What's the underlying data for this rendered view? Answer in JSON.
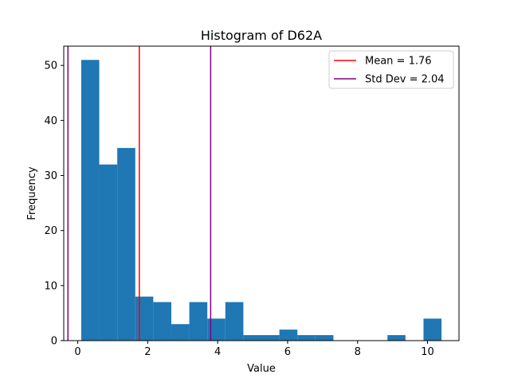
{
  "chart_data": {
    "type": "bar",
    "title": "Histogram of D62A",
    "xlabel": "Value",
    "ylabel": "Frequency",
    "xlim": [
      -0.4,
      10.9
    ],
    "ylim": [
      0,
      53.5
    ],
    "xticks": [
      0,
      2,
      4,
      6,
      8,
      10
    ],
    "yticks": [
      0,
      10,
      20,
      30,
      40,
      50
    ],
    "grid": false,
    "legend_position": "top-right",
    "bar_color": "#1f77b4",
    "bins": [
      {
        "x0": 0.1,
        "x1": 0.615,
        "count": 51
      },
      {
        "x0": 0.615,
        "x1": 1.13,
        "count": 32
      },
      {
        "x0": 1.13,
        "x1": 1.645,
        "count": 35
      },
      {
        "x0": 1.645,
        "x1": 2.16,
        "count": 8
      },
      {
        "x0": 2.16,
        "x1": 2.675,
        "count": 7
      },
      {
        "x0": 2.675,
        "x1": 3.19,
        "count": 3
      },
      {
        "x0": 3.19,
        "x1": 3.705,
        "count": 7
      },
      {
        "x0": 3.705,
        "x1": 4.22,
        "count": 4
      },
      {
        "x0": 4.22,
        "x1": 4.735,
        "count": 7
      },
      {
        "x0": 4.735,
        "x1": 5.25,
        "count": 1
      },
      {
        "x0": 5.25,
        "x1": 5.765,
        "count": 1
      },
      {
        "x0": 5.765,
        "x1": 6.28,
        "count": 2
      },
      {
        "x0": 6.28,
        "x1": 6.795,
        "count": 1
      },
      {
        "x0": 6.795,
        "x1": 7.31,
        "count": 1
      },
      {
        "x0": 7.31,
        "x1": 7.825,
        "count": 0
      },
      {
        "x0": 7.825,
        "x1": 8.34,
        "count": 0
      },
      {
        "x0": 8.34,
        "x1": 8.855,
        "count": 0
      },
      {
        "x0": 8.855,
        "x1": 9.37,
        "count": 1
      },
      {
        "x0": 9.37,
        "x1": 9.885,
        "count": 0
      },
      {
        "x0": 9.885,
        "x1": 10.4,
        "count": 4
      }
    ],
    "vlines": [
      {
        "x": 1.76,
        "color": "#ff0000",
        "label": "Mean = 1.76"
      },
      {
        "x": -0.28,
        "color": "#800080",
        "label": "Std Dev = 2.04"
      },
      {
        "x": 3.8,
        "color": "#800080",
        "label": ""
      }
    ],
    "legend": [
      {
        "label": "Mean = 1.76",
        "color": "#ff0000"
      },
      {
        "label": "Std Dev = 2.04",
        "color": "#800080"
      }
    ]
  }
}
